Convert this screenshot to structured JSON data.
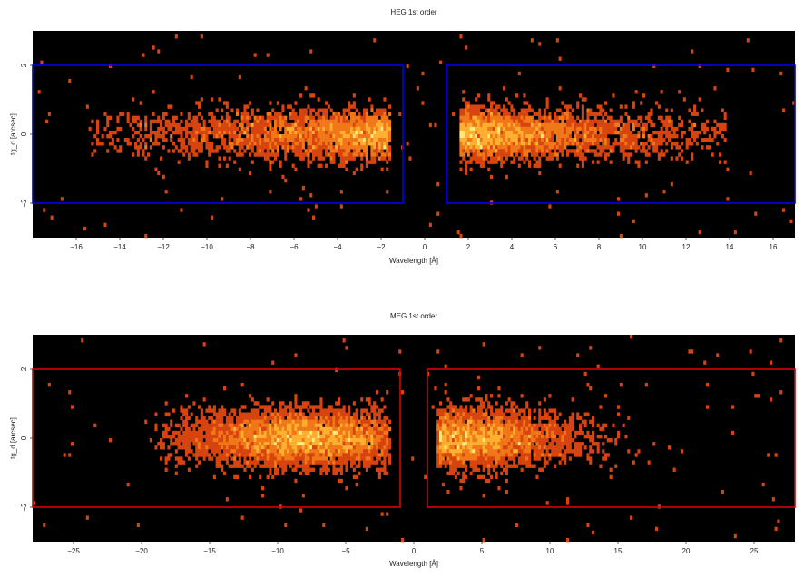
{
  "chart_data": [
    {
      "type": "heatmap",
      "title": "HEG 1st order",
      "xlabel": "Wavelength [Å]",
      "ylabel": "tg_d [arcsec]",
      "xlim": [
        -18.0,
        17.0
      ],
      "ylim": [
        -3.0,
        3.0
      ],
      "xticks": [
        -16,
        -14,
        -12,
        -10,
        -8,
        -6,
        -4,
        -2,
        0,
        2,
        4,
        6,
        8,
        10,
        12,
        14,
        16
      ],
      "xtick_labels": [
        "−16",
        "−14",
        "−12",
        "−10",
        "−8",
        "−6",
        "−4",
        "−2",
        "0",
        "2",
        "4",
        "6",
        "8",
        "10",
        "12",
        "14",
        "16"
      ],
      "yticks": [
        -2,
        0,
        2
      ],
      "ytick_labels": [
        "−2",
        "0",
        "2"
      ],
      "background": "#000000",
      "colormap": [
        "#a02000",
        "#d84410",
        "#f07818",
        "#ffb030",
        "#ffe880"
      ],
      "regions": [
        {
          "x": [
            -18.0,
            -1.0
          ],
          "y": [
            -2.0,
            2.0
          ],
          "color": "#0000ee"
        },
        {
          "x": [
            1.0,
            17.0
          ],
          "y": [
            -2.0,
            2.0
          ],
          "color": "#0000ee"
        }
      ],
      "emission": [
        {
          "x_range": [
            -15.5,
            -1.6
          ],
          "peak_x": -2.0,
          "profile": "rising",
          "sigma_y": 0.35,
          "density": 1.0
        },
        {
          "x_range": [
            1.6,
            13.8
          ],
          "peak_x": 2.2,
          "profile": "falling",
          "sigma_y": 0.35,
          "density": 1.0
        }
      ]
    },
    {
      "type": "heatmap",
      "title": "MEG 1st order",
      "xlabel": "Wavelength [Å]",
      "ylabel": "tg_d [arcsec]",
      "xlim": [
        -28.0,
        28.0
      ],
      "ylim": [
        -3.0,
        3.0
      ],
      "xticks": [
        -25,
        -20,
        -15,
        -10,
        -5,
        0,
        5,
        10,
        15,
        20,
        25
      ],
      "xtick_labels": [
        "−25",
        "−20",
        "−15",
        "−10",
        "−5",
        "0",
        "5",
        "10",
        "15",
        "20",
        "25"
      ],
      "yticks": [
        -2,
        0,
        2
      ],
      "ytick_labels": [
        "−2",
        "0",
        "2"
      ],
      "background": "#000000",
      "colormap": [
        "#a02000",
        "#d84410",
        "#f07818",
        "#ffb030",
        "#ffe880"
      ],
      "regions": [
        {
          "x": [
            -28.0,
            -1.0
          ],
          "y": [
            -2.0,
            2.0
          ],
          "color": "#dd0000"
        },
        {
          "x": [
            1.0,
            28.0
          ],
          "y": [
            -2.0,
            2.0
          ],
          "color": "#dd0000"
        }
      ],
      "emission": [
        {
          "x_range": [
            -19.0,
            -1.8
          ],
          "peak_x": -8.0,
          "profile": "mid",
          "sigma_y": 0.4,
          "density": 1.0
        },
        {
          "x_range": [
            1.8,
            19.0
          ],
          "peak_x": 3.0,
          "profile": "mid",
          "sigma_y": 0.4,
          "density": 1.0
        }
      ]
    }
  ]
}
